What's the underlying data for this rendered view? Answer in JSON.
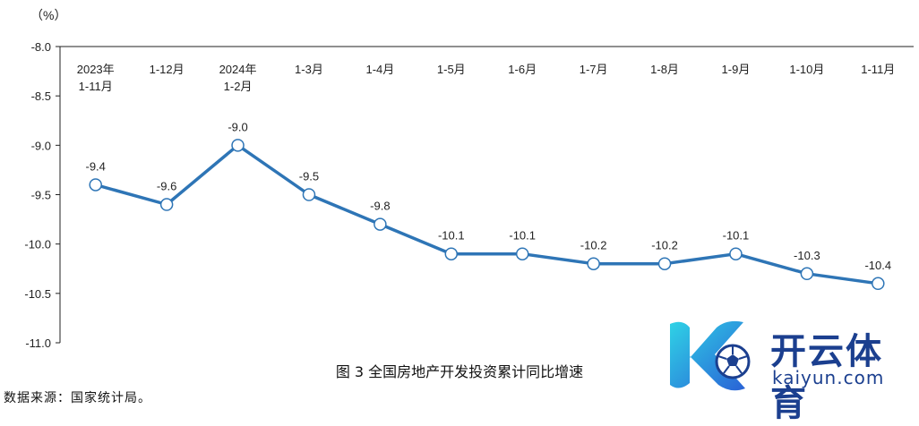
{
  "chart_data": {
    "type": "line",
    "unit_label": "（%）",
    "caption": "图 3 全国房地产开发投资累计同比增速",
    "source": "数据来源：国家统计局。",
    "categories": [
      [
        "2023年",
        "1-11月"
      ],
      [
        "1-12月"
      ],
      [
        "2024年",
        "1-2月"
      ],
      [
        "1-3月"
      ],
      [
        "1-4月"
      ],
      [
        "1-5月"
      ],
      [
        "1-6月"
      ],
      [
        "1-7月"
      ],
      [
        "1-8月"
      ],
      [
        "1-9月"
      ],
      [
        "1-10月"
      ],
      [
        "1-11月"
      ]
    ],
    "values": [
      -9.4,
      -9.6,
      -9.0,
      -9.5,
      -9.8,
      -10.1,
      -10.1,
      -10.2,
      -10.2,
      -10.1,
      -10.3,
      -10.4
    ],
    "data_labels": [
      "-9.4",
      "-9.6",
      "-9.0",
      "-9.5",
      "-9.8",
      "-10.1",
      "-10.1",
      "-10.2",
      "-10.2",
      "-10.1",
      "-10.3",
      "-10.4"
    ],
    "yticks": [
      "-8.0",
      "-8.5",
      "-9.0",
      "-9.5",
      "-10.0",
      "-10.5",
      "-11.0"
    ],
    "ylim": [
      -11.0,
      -8.0
    ],
    "y_inverted": true,
    "line_color": "#2e75b6",
    "marker_fill": "#ffffff",
    "grid": false
  },
  "watermark": {
    "cn": "开云体育",
    "en": "kaiyun.com",
    "color": "#1b3f8f"
  }
}
